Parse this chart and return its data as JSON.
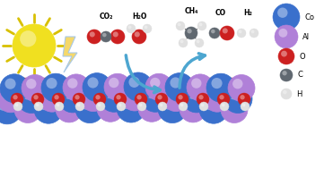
{
  "bg_color": "#ffffff",
  "sun_color": "#f0e020",
  "sun_ray_color": "#e8cc00",
  "lightning_face": "#f5d86a",
  "lightning_edge": "#a8c8e8",
  "arrow_color": "#4da6d0",
  "co2_label": "CO₂",
  "h2o_label": "H₂O",
  "ch4_label": "CH₄",
  "co_label": "CO",
  "h2_label": "H₂",
  "co_blue": "#3a70cc",
  "al_purple": "#b080d8",
  "o_red": "#cc2020",
  "c_gray": "#606870",
  "h_white": "#e0e0e0",
  "legend_items": [
    {
      "label": "Co",
      "color": "#3a70cc",
      "r": 0.03
    },
    {
      "label": "Al",
      "color": "#b080d8",
      "r": 0.027
    },
    {
      "label": "O",
      "color": "#cc2020",
      "r": 0.017
    },
    {
      "label": "C",
      "color": "#606870",
      "r": 0.013
    },
    {
      "label": "H",
      "color": "#e0e0e0",
      "r": 0.011
    }
  ]
}
